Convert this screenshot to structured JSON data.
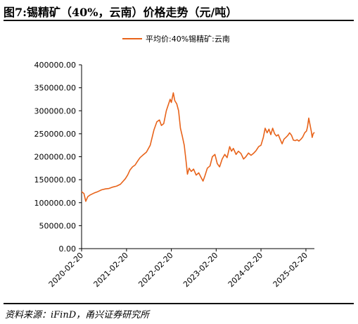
{
  "header": {
    "title": "图7:锡精矿（40%，云南）价格走势（元/吨）"
  },
  "footer": {
    "source": "资料来源：iFinD，甬兴证券研究所"
  },
  "colors": {
    "series": "#E8631A",
    "axis": "#000000"
  },
  "chart_data": {
    "type": "line",
    "title": "",
    "xlabel": "",
    "ylabel": "",
    "legend": "top-center",
    "grid": false,
    "x_range": [
      "2020-02-20",
      "2025-04-30"
    ],
    "ylim": [
      0,
      400000
    ],
    "y_ticks": [
      "0.00",
      "50000.00",
      "100000.00",
      "150000.00",
      "200000.00",
      "250000.00",
      "300000.00",
      "350000.00",
      "400000.00"
    ],
    "x_ticks": [
      "2020-02-20",
      "2021-02-20",
      "2022-02-20",
      "2023-02-20",
      "2024-02-20",
      "2025-02-20"
    ],
    "series": [
      {
        "name": "平均价:40%锡精矿:云南",
        "points": [
          [
            "2020-02-20",
            124000
          ],
          [
            "2020-03-10",
            120000
          ],
          [
            "2020-03-25",
            103000
          ],
          [
            "2020-04-10",
            113000
          ],
          [
            "2020-05-01",
            117000
          ],
          [
            "2020-06-01",
            121000
          ],
          [
            "2020-07-01",
            124000
          ],
          [
            "2020-08-01",
            128000
          ],
          [
            "2020-09-01",
            130000
          ],
          [
            "2020-10-01",
            131000
          ],
          [
            "2020-11-01",
            134000
          ],
          [
            "2020-12-01",
            136000
          ],
          [
            "2021-01-01",
            140000
          ],
          [
            "2021-02-10",
            152000
          ],
          [
            "2021-03-01",
            160000
          ],
          [
            "2021-03-20",
            171000
          ],
          [
            "2021-04-10",
            178000
          ],
          [
            "2021-05-01",
            182000
          ],
          [
            "2021-05-20",
            190000
          ],
          [
            "2021-06-10",
            198000
          ],
          [
            "2021-07-01",
            203000
          ],
          [
            "2021-08-01",
            210000
          ],
          [
            "2021-09-01",
            225000
          ],
          [
            "2021-10-01",
            258000
          ],
          [
            "2021-10-25",
            276000
          ],
          [
            "2021-11-15",
            280000
          ],
          [
            "2021-12-01",
            268000
          ],
          [
            "2021-12-20",
            272000
          ],
          [
            "2022-01-10",
            300000
          ],
          [
            "2022-01-25",
            312000
          ],
          [
            "2022-02-10",
            325000
          ],
          [
            "2022-02-20",
            318000
          ],
          [
            "2022-03-01",
            330000
          ],
          [
            "2022-03-08",
            339000
          ],
          [
            "2022-03-20",
            322000
          ],
          [
            "2022-04-05",
            315000
          ],
          [
            "2022-04-20",
            300000
          ],
          [
            "2022-05-05",
            262000
          ],
          [
            "2022-05-20",
            245000
          ],
          [
            "2022-06-05",
            225000
          ],
          [
            "2022-06-20",
            190000
          ],
          [
            "2022-07-01",
            162000
          ],
          [
            "2022-07-15",
            175000
          ],
          [
            "2022-08-01",
            168000
          ],
          [
            "2022-08-20",
            173000
          ],
          [
            "2022-09-10",
            160000
          ],
          [
            "2022-10-01",
            165000
          ],
          [
            "2022-10-20",
            155000
          ],
          [
            "2022-11-05",
            147000
          ],
          [
            "2022-11-20",
            158000
          ],
          [
            "2022-12-10",
            175000
          ],
          [
            "2023-01-01",
            180000
          ],
          [
            "2023-01-20",
            200000
          ],
          [
            "2023-02-10",
            205000
          ],
          [
            "2023-03-01",
            185000
          ],
          [
            "2023-03-20",
            178000
          ],
          [
            "2023-04-10",
            195000
          ],
          [
            "2023-05-01",
            205000
          ],
          [
            "2023-05-20",
            198000
          ],
          [
            "2023-06-10",
            222000
          ],
          [
            "2023-06-25",
            212000
          ],
          [
            "2023-07-10",
            218000
          ],
          [
            "2023-08-01",
            205000
          ],
          [
            "2023-08-20",
            212000
          ],
          [
            "2023-09-10",
            207000
          ],
          [
            "2023-10-01",
            195000
          ],
          [
            "2023-10-20",
            200000
          ],
          [
            "2023-11-10",
            208000
          ],
          [
            "2023-12-01",
            203000
          ],
          [
            "2023-12-20",
            207000
          ],
          [
            "2024-01-10",
            213000
          ],
          [
            "2024-02-01",
            222000
          ],
          [
            "2024-02-20",
            225000
          ],
          [
            "2024-03-10",
            242000
          ],
          [
            "2024-03-25",
            262000
          ],
          [
            "2024-04-10",
            252000
          ],
          [
            "2024-04-25",
            260000
          ],
          [
            "2024-05-10",
            248000
          ],
          [
            "2024-05-25",
            262000
          ],
          [
            "2024-06-10",
            250000
          ],
          [
            "2024-06-25",
            245000
          ],
          [
            "2024-07-10",
            248000
          ],
          [
            "2024-07-25",
            238000
          ],
          [
            "2024-08-10",
            228000
          ],
          [
            "2024-08-25",
            238000
          ],
          [
            "2024-09-10",
            242000
          ],
          [
            "2024-09-25",
            246000
          ],
          [
            "2024-10-10",
            252000
          ],
          [
            "2024-10-25",
            247000
          ],
          [
            "2024-11-10",
            236000
          ],
          [
            "2024-11-25",
            235000
          ],
          [
            "2024-12-10",
            237000
          ],
          [
            "2024-12-25",
            234000
          ],
          [
            "2025-01-10",
            238000
          ],
          [
            "2025-01-25",
            243000
          ],
          [
            "2025-02-10",
            252000
          ],
          [
            "2025-02-25",
            256000
          ],
          [
            "2025-03-05",
            265000
          ],
          [
            "2025-03-15",
            284000
          ],
          [
            "2025-03-25",
            270000
          ],
          [
            "2025-04-05",
            255000
          ],
          [
            "2025-04-12",
            242000
          ],
          [
            "2025-04-20",
            250000
          ],
          [
            "2025-04-30",
            253000
          ]
        ]
      }
    ]
  }
}
